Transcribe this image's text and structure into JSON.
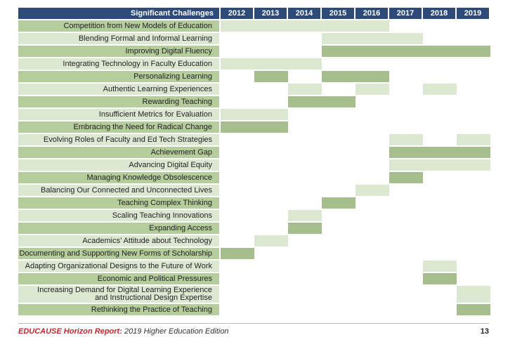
{
  "header": {
    "label": "Significant Challenges",
    "years": [
      "2012",
      "2013",
      "2014",
      "2015",
      "2016",
      "2017",
      "2018",
      "2019"
    ]
  },
  "colors": {
    "header": "#2e4a78",
    "label_dark": "#b5cc9b",
    "label_light": "#dde8d3",
    "cell_dark": "#a6bd8d",
    "cell_light": "#dde8d3"
  },
  "rows": [
    {
      "label": "Competition from New Models of Education",
      "shade": "dark",
      "cells": [
        {
          "year": "2012",
          "tone": "light"
        },
        {
          "year": "2013",
          "tone": "light"
        },
        {
          "year": "2014",
          "tone": "light"
        },
        {
          "year": "2015",
          "tone": "light"
        },
        {
          "year": "2016",
          "tone": "light"
        }
      ]
    },
    {
      "label": "Blending Formal and Informal Learning",
      "shade": "light",
      "cells": [
        {
          "year": "2015",
          "tone": "light"
        },
        {
          "year": "2016",
          "tone": "light"
        },
        {
          "year": "2017",
          "tone": "light"
        }
      ]
    },
    {
      "label": "Improving Digital Fluency",
      "shade": "dark",
      "cells": [
        {
          "year": "2015",
          "tone": "dark"
        },
        {
          "year": "2016",
          "tone": "dark"
        },
        {
          "year": "2017",
          "tone": "dark"
        },
        {
          "year": "2018",
          "tone": "dark"
        },
        {
          "year": "2019",
          "tone": "dark"
        }
      ]
    },
    {
      "label": "Integrating Technology in Faculty Education",
      "shade": "light",
      "cells": [
        {
          "year": "2012",
          "tone": "light"
        },
        {
          "year": "2013",
          "tone": "light"
        },
        {
          "year": "2014",
          "tone": "light"
        }
      ]
    },
    {
      "label": "Personalizing Learning",
      "shade": "dark",
      "cells": [
        {
          "year": "2013",
          "tone": "dark"
        },
        {
          "year": "2015",
          "tone": "dark"
        },
        {
          "year": "2016",
          "tone": "dark"
        }
      ]
    },
    {
      "label": "Authentic Learning Experiences",
      "shade": "light",
      "cells": [
        {
          "year": "2014",
          "tone": "light"
        },
        {
          "year": "2016",
          "tone": "light"
        },
        {
          "year": "2018",
          "tone": "light"
        }
      ]
    },
    {
      "label": "Rewarding Teaching",
      "shade": "dark",
      "cells": [
        {
          "year": "2014",
          "tone": "dark"
        },
        {
          "year": "2015",
          "tone": "dark"
        }
      ]
    },
    {
      "label": "Insufficient Metrics for Evaluation",
      "shade": "light",
      "cells": [
        {
          "year": "2012",
          "tone": "light"
        },
        {
          "year": "2013",
          "tone": "light"
        }
      ]
    },
    {
      "label": "Embracing the Need for Radical Change",
      "shade": "dark",
      "cells": [
        {
          "year": "2012",
          "tone": "dark"
        },
        {
          "year": "2013",
          "tone": "dark"
        }
      ]
    },
    {
      "label": "Evolving Roles of Faculty and Ed Tech Strategies",
      "shade": "light",
      "cells": [
        {
          "year": "2017",
          "tone": "light"
        },
        {
          "year": "2019",
          "tone": "light"
        }
      ]
    },
    {
      "label": "Achievement Gap",
      "shade": "dark",
      "cells": [
        {
          "year": "2017",
          "tone": "dark"
        },
        {
          "year": "2018",
          "tone": "dark"
        },
        {
          "year": "2019",
          "tone": "dark"
        }
      ]
    },
    {
      "label": "Advancing Digital Equity",
      "shade": "light",
      "cells": [
        {
          "year": "2017",
          "tone": "light"
        },
        {
          "year": "2018",
          "tone": "light"
        },
        {
          "year": "2019",
          "tone": "light"
        }
      ]
    },
    {
      "label": "Managing Knowledge Obsolescence",
      "shade": "dark",
      "cells": [
        {
          "year": "2017",
          "tone": "dark"
        }
      ]
    },
    {
      "label": "Balancing Our Connected and Unconnected Lives",
      "shade": "light",
      "cells": [
        {
          "year": "2016",
          "tone": "light"
        }
      ]
    },
    {
      "label": "Teaching Complex Thinking",
      "shade": "dark",
      "cells": [
        {
          "year": "2015",
          "tone": "dark"
        }
      ]
    },
    {
      "label": "Scaling Teaching Innovations",
      "shade": "light",
      "cells": [
        {
          "year": "2014",
          "tone": "light"
        }
      ]
    },
    {
      "label": "Expanding Access",
      "shade": "dark",
      "cells": [
        {
          "year": "2014",
          "tone": "dark"
        }
      ]
    },
    {
      "label": "Academics’ Attitude about Technology",
      "shade": "light",
      "cells": [
        {
          "year": "2013",
          "tone": "light"
        }
      ]
    },
    {
      "label": "Documenting and Supporting New Forms of Scholarship",
      "shade": "dark",
      "cells": [
        {
          "year": "2012",
          "tone": "dark"
        }
      ]
    },
    {
      "label": "Adapting Organizational Designs to the Future of Work",
      "shade": "light",
      "cells": [
        {
          "year": "2018",
          "tone": "light"
        }
      ]
    },
    {
      "label": "Economic and Political Pressures",
      "shade": "dark",
      "cells": [
        {
          "year": "2018",
          "tone": "dark"
        }
      ]
    },
    {
      "label": "Increasing Demand for Digital Learning Experience\nand Instructional Design Expertise",
      "shade": "light",
      "cells": [
        {
          "year": "2019",
          "tone": "light"
        }
      ]
    },
    {
      "label": "Rethinking the Practice of Teaching",
      "shade": "dark",
      "cells": [
        {
          "year": "2019",
          "tone": "dark"
        }
      ]
    }
  ],
  "footer": {
    "brand": "EDUCAUSE Horizon Report:",
    "edition": " 2019 Higher Education Edition",
    "page_number": "13"
  }
}
